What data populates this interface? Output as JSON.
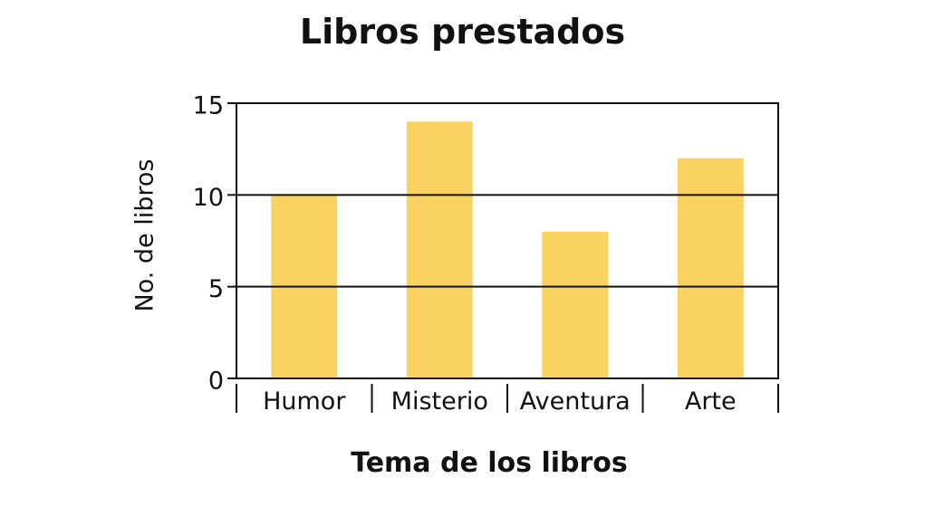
{
  "chart_data": {
    "type": "bar",
    "title": "Libros prestados",
    "xlabel": "Tema de los libros",
    "ylabel": "No. de libros",
    "categories": [
      "Humor",
      "Misterio",
      "Aventura",
      "Arte"
    ],
    "values": [
      10,
      14,
      8,
      12
    ],
    "ylim": [
      0,
      15
    ],
    "yticks": [
      0,
      5,
      10,
      15
    ],
    "grid": true,
    "bar_color": "#f9d262",
    "legend": "none"
  }
}
